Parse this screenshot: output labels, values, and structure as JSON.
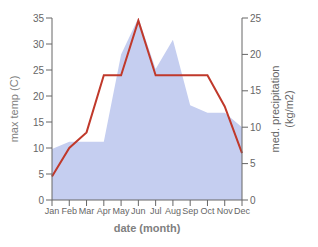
{
  "chart_data": {
    "type": "line",
    "categories": [
      "Jan",
      "Feb",
      "Mar",
      "Apr",
      "May",
      "Jun",
      "Jul",
      "Aug",
      "Sep",
      "Oct",
      "Nov",
      "Dec"
    ],
    "series": [
      {
        "type": "area",
        "color": "#c5cef0",
        "axis": "y2",
        "values": [
          7,
          8,
          8,
          8,
          20,
          25,
          18,
          22,
          13,
          12,
          12,
          10
        ]
      },
      {
        "type": "line",
        "color": "#c0392b",
        "values": [
          4.5,
          10.0,
          13.0,
          24.0,
          24.0,
          34.5,
          24.0,
          24.0,
          24.0,
          24.0,
          18.0,
          9.0
        ]
      }
    ],
    "xlabel": "date (month)",
    "ylabel": "max temp (C)",
    "y2label": "med. precipitation\n(kg/m2)",
    "ylim": [
      0,
      35
    ],
    "yticks": [
      0,
      5,
      10,
      15,
      20,
      25,
      30,
      35
    ],
    "y2lim": [
      0,
      25
    ],
    "y2ticks": [
      0,
      5,
      10,
      15,
      20,
      25
    ],
    "grid": false
  }
}
